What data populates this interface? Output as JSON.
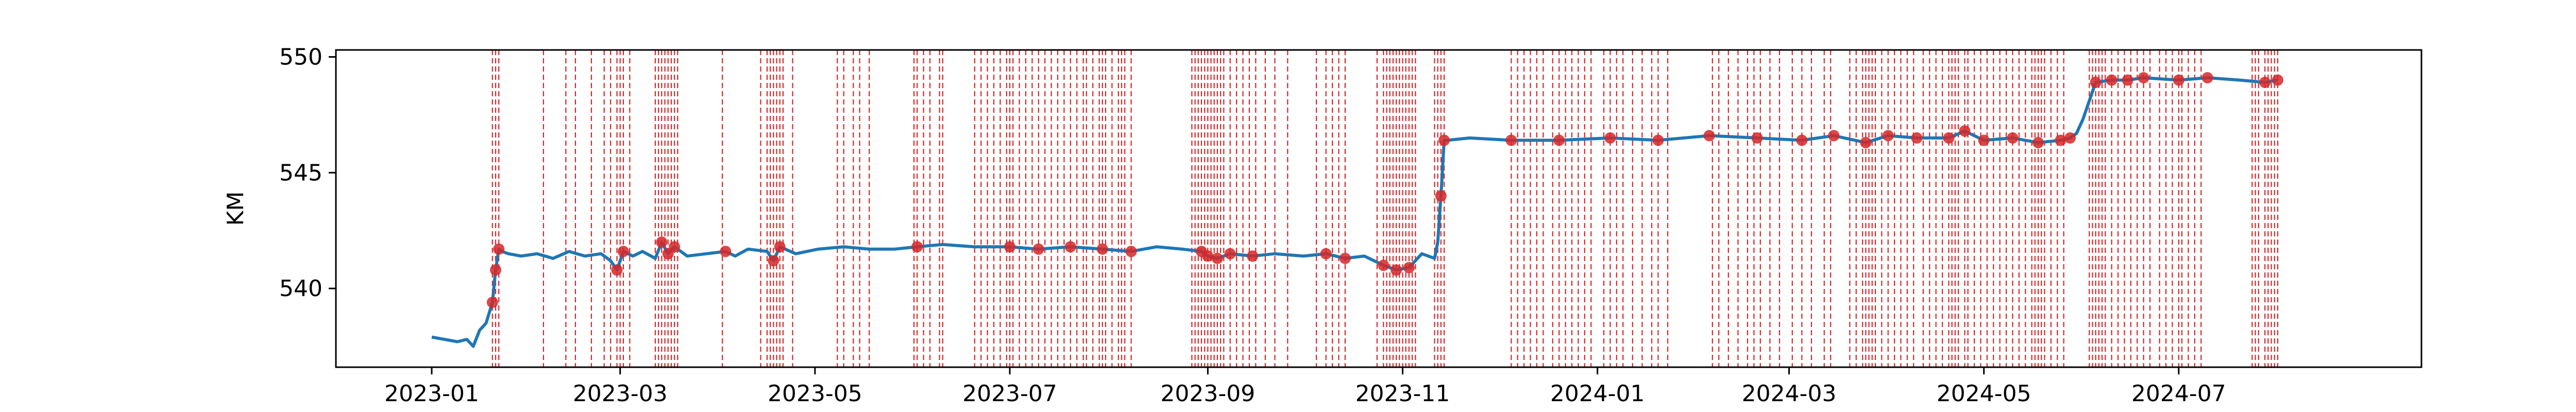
{
  "chart_data": {
    "type": "line",
    "title": "",
    "xlabel": "",
    "ylabel": "KM",
    "xlim": [
      "2022-12-02",
      "2024-09-15"
    ],
    "ylim": [
      536.6,
      550.3
    ],
    "grid": false,
    "legend": "none",
    "x_ticks": [
      "2023-01",
      "2023-03",
      "2023-05",
      "2023-07",
      "2023-09",
      "2023-11",
      "2024-01",
      "2024-03",
      "2024-05",
      "2024-07"
    ],
    "y_ticks": [
      540,
      545,
      550
    ],
    "colors": {
      "line": "#1f77b4",
      "anomaly": "#d62728"
    },
    "series": [
      {
        "x": [
          "2023-01-01",
          "2023-01-05",
          "2023-01-09",
          "2023-01-12",
          "2023-01-14",
          "2023-01-16",
          "2023-01-18",
          "2023-01-20",
          "2023-01-21",
          "2023-01-22",
          "2023-01-23",
          "2023-01-25",
          "2023-01-29",
          "2023-02-03",
          "2023-02-08",
          "2023-02-13",
          "2023-02-18",
          "2023-02-23",
          "2023-02-26",
          "2023-02-28",
          "2023-03-02",
          "2023-03-05",
          "2023-03-08",
          "2023-03-12",
          "2023-03-14",
          "2023-03-16",
          "2023-03-18",
          "2023-03-22",
          "2023-03-28",
          "2023-04-03",
          "2023-04-06",
          "2023-04-10",
          "2023-04-16",
          "2023-04-18",
          "2023-04-20",
          "2023-04-25",
          "2023-05-02",
          "2023-05-10",
          "2023-05-18",
          "2023-05-26",
          "2023-06-02",
          "2023-06-10",
          "2023-06-20",
          "2023-07-01",
          "2023-07-10",
          "2023-07-20",
          "2023-07-30",
          "2023-08-08",
          "2023-08-16",
          "2023-08-24",
          "2023-08-30",
          "2023-09-01",
          "2023-09-04",
          "2023-09-08",
          "2023-09-15",
          "2023-09-22",
          "2023-10-01",
          "2023-10-08",
          "2023-10-14",
          "2023-10-20",
          "2023-10-26",
          "2023-10-30",
          "2023-11-03",
          "2023-11-07",
          "2023-11-11",
          "2023-11-12",
          "2023-11-13",
          "2023-11-14",
          "2023-11-15",
          "2023-11-22",
          "2023-12-05",
          "2023-12-20",
          "2024-01-05",
          "2024-01-20",
          "2024-02-05",
          "2024-02-20",
          "2024-03-05",
          "2024-03-15",
          "2024-03-25",
          "2024-04-01",
          "2024-04-10",
          "2024-04-20",
          "2024-04-25",
          "2024-05-01",
          "2024-05-10",
          "2024-05-18",
          "2024-05-25",
          "2024-05-28",
          "2024-05-30",
          "2024-06-01",
          "2024-06-05",
          "2024-06-10",
          "2024-06-15",
          "2024-06-20",
          "2024-07-01",
          "2024-07-10",
          "2024-07-20",
          "2024-07-28",
          "2024-08-01"
        ],
        "y": [
          537.9,
          537.8,
          537.7,
          537.8,
          537.5,
          538.2,
          538.5,
          539.4,
          540.8,
          541.7,
          541.6,
          541.5,
          541.4,
          541.5,
          541.3,
          541.6,
          541.4,
          541.5,
          541.2,
          540.8,
          541.6,
          541.4,
          541.6,
          541.3,
          542.0,
          541.5,
          541.8,
          541.4,
          541.5,
          541.6,
          541.4,
          541.7,
          541.6,
          541.2,
          541.8,
          541.5,
          541.7,
          541.8,
          541.7,
          541.7,
          541.8,
          541.9,
          541.8,
          541.8,
          541.7,
          541.8,
          541.7,
          541.6,
          541.8,
          541.7,
          541.6,
          541.4,
          541.3,
          541.5,
          541.4,
          541.5,
          541.4,
          541.5,
          541.3,
          541.4,
          541.0,
          540.8,
          540.9,
          541.5,
          541.3,
          542.0,
          544.0,
          546.4,
          546.4,
          546.5,
          546.4,
          546.4,
          546.5,
          546.4,
          546.6,
          546.5,
          546.4,
          546.6,
          546.3,
          546.6,
          546.5,
          546.5,
          546.8,
          546.4,
          546.5,
          546.3,
          546.4,
          546.5,
          546.7,
          547.3,
          548.9,
          549.0,
          549.0,
          549.1,
          549.0,
          549.1,
          549.0,
          548.9,
          549.0
        ]
      }
    ],
    "anomaly_points": {
      "x": [
        "2023-01-20",
        "2023-01-21",
        "2023-01-22",
        "2023-02-28",
        "2023-03-02",
        "2023-03-14",
        "2023-03-16",
        "2023-03-18",
        "2023-04-03",
        "2023-04-18",
        "2023-04-20",
        "2023-06-02",
        "2023-07-01",
        "2023-07-10",
        "2023-07-20",
        "2023-07-30",
        "2023-08-08",
        "2023-08-30",
        "2023-09-01",
        "2023-09-04",
        "2023-09-08",
        "2023-09-15",
        "2023-10-08",
        "2023-10-14",
        "2023-10-26",
        "2023-10-30",
        "2023-11-03",
        "2023-11-13",
        "2023-11-14",
        "2023-12-05",
        "2023-12-20",
        "2024-01-05",
        "2024-01-20",
        "2024-02-05",
        "2024-02-20",
        "2024-03-05",
        "2024-03-15",
        "2024-03-25",
        "2024-04-01",
        "2024-04-10",
        "2024-04-20",
        "2024-04-25",
        "2024-05-01",
        "2024-05-10",
        "2024-05-18",
        "2024-05-25",
        "2024-05-28",
        "2024-06-05",
        "2024-06-10",
        "2024-06-15",
        "2024-06-20",
        "2024-07-01",
        "2024-07-10",
        "2024-07-28",
        "2024-08-01"
      ],
      "y": [
        539.4,
        540.8,
        541.7,
        540.8,
        541.6,
        542.0,
        541.5,
        541.8,
        541.6,
        541.2,
        541.8,
        541.8,
        541.8,
        541.7,
        541.8,
        541.7,
        541.6,
        541.6,
        541.4,
        541.3,
        541.5,
        541.4,
        541.5,
        541.3,
        541.0,
        540.8,
        540.9,
        544.0,
        546.4,
        546.4,
        546.4,
        546.5,
        546.4,
        546.6,
        546.5,
        546.4,
        546.6,
        546.3,
        546.6,
        546.5,
        546.5,
        546.8,
        546.4,
        546.5,
        546.3,
        546.4,
        546.5,
        548.9,
        549.0,
        549.0,
        549.1,
        549.0,
        549.1,
        548.9,
        549.0
      ]
    },
    "anomaly_lines": [
      "2023-01-20",
      "2023-01-21",
      "2023-01-22",
      "2023-02-05",
      "2023-02-12",
      "2023-02-15",
      "2023-02-20",
      "2023-02-24",
      "2023-02-26",
      "2023-02-28",
      "2023-03-01",
      "2023-03-02",
      "2023-03-04",
      "2023-03-12",
      "2023-03-13",
      "2023-03-14",
      "2023-03-15",
      "2023-03-16",
      "2023-03-17",
      "2023-03-18",
      "2023-03-19",
      "2023-04-02",
      "2023-04-14",
      "2023-04-16",
      "2023-04-17",
      "2023-04-18",
      "2023-04-19",
      "2023-04-20",
      "2023-04-21",
      "2023-04-24",
      "2023-05-08",
      "2023-05-10",
      "2023-05-13",
      "2023-05-15",
      "2023-05-18",
      "2023-06-01",
      "2023-06-02",
      "2023-06-04",
      "2023-06-06",
      "2023-06-09",
      "2023-06-10",
      "2023-06-20",
      "2023-06-22",
      "2023-06-24",
      "2023-06-26",
      "2023-06-28",
      "2023-06-30",
      "2023-07-01",
      "2023-07-02",
      "2023-07-04",
      "2023-07-06",
      "2023-07-08",
      "2023-07-10",
      "2023-07-12",
      "2023-07-14",
      "2023-07-16",
      "2023-07-18",
      "2023-07-20",
      "2023-07-22",
      "2023-07-24",
      "2023-07-25",
      "2023-07-27",
      "2023-07-29",
      "2023-07-30",
      "2023-07-31",
      "2023-08-02",
      "2023-08-04",
      "2023-08-05",
      "2023-08-06",
      "2023-08-08",
      "2023-08-27",
      "2023-08-28",
      "2023-08-29",
      "2023-08-30",
      "2023-08-31",
      "2023-09-01",
      "2023-09-02",
      "2023-09-03",
      "2023-09-04",
      "2023-09-05",
      "2023-09-06",
      "2023-09-08",
      "2023-09-10",
      "2023-09-12",
      "2023-09-14",
      "2023-09-16",
      "2023-09-19",
      "2023-09-22",
      "2023-09-26",
      "2023-10-05",
      "2023-10-08",
      "2023-10-10",
      "2023-10-12",
      "2023-10-14",
      "2023-10-24",
      "2023-10-26",
      "2023-10-27",
      "2023-10-28",
      "2023-10-29",
      "2023-10-30",
      "2023-10-31",
      "2023-11-01",
      "2023-11-02",
      "2023-11-03",
      "2023-11-04",
      "2023-11-05",
      "2023-11-11",
      "2023-11-12",
      "2023-11-13",
      "2023-11-14",
      "2023-12-05",
      "2023-12-07",
      "2023-12-09",
      "2023-12-11",
      "2023-12-13",
      "2023-12-15",
      "2023-12-18",
      "2023-12-20",
      "2023-12-22",
      "2023-12-24",
      "2023-12-26",
      "2023-12-28",
      "2023-12-30",
      "2024-01-03",
      "2024-01-05",
      "2024-01-07",
      "2024-01-09",
      "2024-01-12",
      "2024-01-15",
      "2024-01-18",
      "2024-01-20",
      "2024-01-23",
      "2024-02-06",
      "2024-02-08",
      "2024-02-11",
      "2024-02-14",
      "2024-02-17",
      "2024-02-19",
      "2024-02-21",
      "2024-02-24",
      "2024-02-27",
      "2024-03-02",
      "2024-03-05",
      "2024-03-08",
      "2024-03-12",
      "2024-03-14",
      "2024-03-20",
      "2024-03-22",
      "2024-03-24",
      "2024-03-25",
      "2024-03-26",
      "2024-03-27",
      "2024-03-28",
      "2024-03-30",
      "2024-04-01",
      "2024-04-03",
      "2024-04-05",
      "2024-04-07",
      "2024-04-09",
      "2024-04-12",
      "2024-04-14",
      "2024-04-16",
      "2024-04-18",
      "2024-04-20",
      "2024-04-21",
      "2024-04-22",
      "2024-04-23",
      "2024-04-25",
      "2024-04-26",
      "2024-04-28",
      "2024-04-30",
      "2024-05-02",
      "2024-05-04",
      "2024-05-06",
      "2024-05-08",
      "2024-05-10",
      "2024-05-12",
      "2024-05-14",
      "2024-05-16",
      "2024-05-17",
      "2024-05-18",
      "2024-05-19",
      "2024-05-20",
      "2024-05-22",
      "2024-05-24",
      "2024-05-26",
      "2024-06-03",
      "2024-06-04",
      "2024-06-05",
      "2024-06-06",
      "2024-06-07",
      "2024-06-08",
      "2024-06-10",
      "2024-06-12",
      "2024-06-14",
      "2024-06-16",
      "2024-06-18",
      "2024-06-20",
      "2024-06-22",
      "2024-06-25",
      "2024-06-27",
      "2024-06-29",
      "2024-07-01",
      "2024-07-02",
      "2024-07-04",
      "2024-07-06",
      "2024-07-08",
      "2024-07-24",
      "2024-07-25",
      "2024-07-26",
      "2024-07-28",
      "2024-07-29",
      "2024-07-30",
      "2024-07-31",
      "2024-08-01"
    ]
  }
}
